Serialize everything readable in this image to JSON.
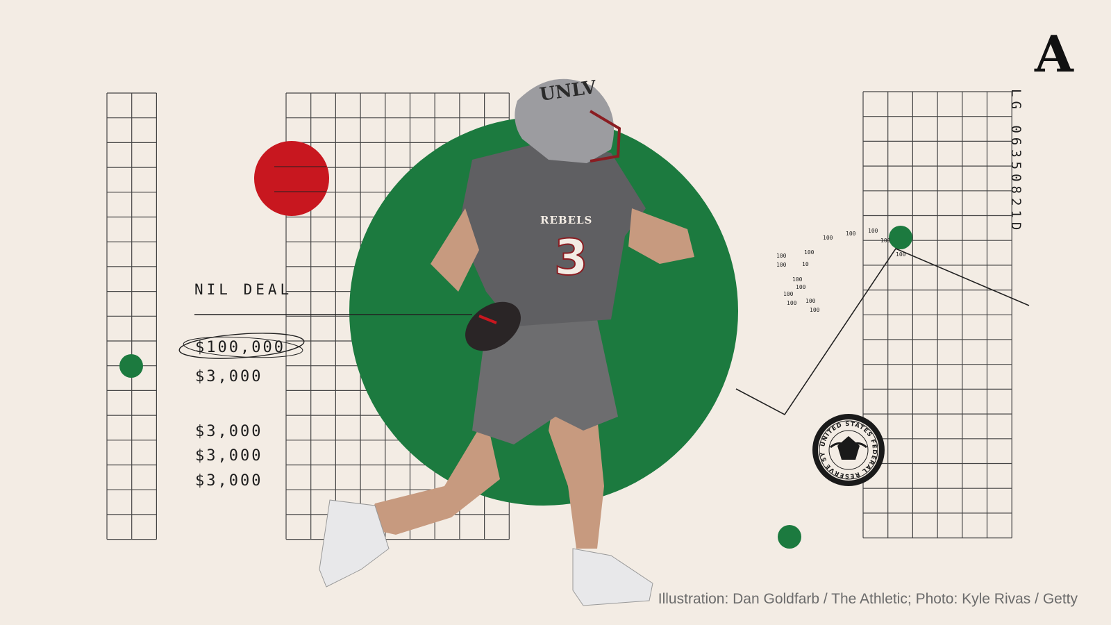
{
  "graphic": {
    "label": "NIL DEAL",
    "amounts": [
      "$100,000",
      "$3,000",
      "$3,000",
      "$3,000",
      "$3,000"
    ],
    "serial_number": "LG 06350821D",
    "binary_digits": [
      "100",
      "100",
      "100",
      "10",
      "100",
      "100",
      "100",
      "100",
      "100",
      "100",
      "100",
      "100",
      "100",
      "100",
      "100"
    ],
    "seal_text": "UNITED STATES FEDERAL RESERVE SYSTEM"
  },
  "player": {
    "helmet_text": "UNLV",
    "jersey_text": "REBELS",
    "jersey_number": "3"
  },
  "logo": {
    "letter": "A"
  },
  "credit": "Illustration: Dan Goldfarb / The Athletic; Photo: Kyle Rivas / Getty",
  "colors": {
    "background": "#f3ece4",
    "green": "#1c7a3f",
    "red": "#c8171f",
    "ink": "#1d1d1d"
  }
}
